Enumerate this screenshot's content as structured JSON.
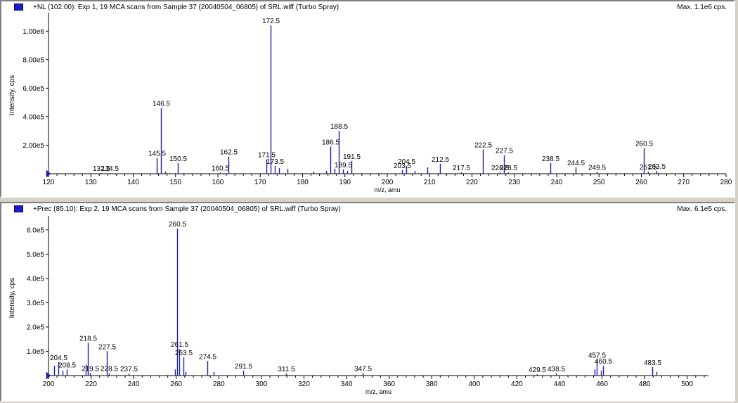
{
  "chart_data": [
    {
      "type": "bar",
      "title": "+NL (102.00): Exp 1, 19 MCA scans from Sample 37 (20040504_06805) of SRL.wiff (Turbo Spray)",
      "max_label": "Max. 1.1e6 cps.",
      "xlabel": "m/z, amu",
      "ylabel": "Intensity, cps",
      "xlim": [
        120,
        280
      ],
      "ylim": [
        0,
        1100000
      ],
      "xticks": [
        120,
        130,
        140,
        150,
        160,
        170,
        180,
        190,
        200,
        210,
        220,
        230,
        240,
        250,
        260,
        270,
        280
      ],
      "yticks": [
        {
          "value": 200000,
          "label": "2.00e5"
        },
        {
          "value": 400000,
          "label": "4.00e5"
        },
        {
          "value": 600000,
          "label": "6.00e5"
        },
        {
          "value": 800000,
          "label": "8.00e5"
        },
        {
          "value": 1000000,
          "label": "1.00e6"
        }
      ],
      "peaks": [
        {
          "x": 132.5,
          "y": 4000,
          "label": "132.5"
        },
        {
          "x": 134.5,
          "y": 4000,
          "label": "134.5"
        },
        {
          "x": 145.5,
          "y": 110000,
          "label": "145.5"
        },
        {
          "x": 146.5,
          "y": 460000,
          "label": "146.5"
        },
        {
          "x": 147.5,
          "y": 15000
        },
        {
          "x": 150.5,
          "y": 75000,
          "label": "150.5"
        },
        {
          "x": 160.5,
          "y": 8000,
          "label": "160.5"
        },
        {
          "x": 162.5,
          "y": 120000,
          "label": "162.5"
        },
        {
          "x": 171.5,
          "y": 100000,
          "label": "171.5"
        },
        {
          "x": 172.5,
          "y": 1040000,
          "label": "172.5"
        },
        {
          "x": 173.5,
          "y": 55000,
          "label": "173.5"
        },
        {
          "x": 174.5,
          "y": 40000
        },
        {
          "x": 176.5,
          "y": 35000
        },
        {
          "x": 182.5,
          "y": 15000
        },
        {
          "x": 185.5,
          "y": 20000
        },
        {
          "x": 186.5,
          "y": 190000,
          "label": "186.5"
        },
        {
          "x": 187.5,
          "y": 35000
        },
        {
          "x": 188.5,
          "y": 300000,
          "label": "188.5"
        },
        {
          "x": 189.5,
          "y": 30000,
          "label": "189.5"
        },
        {
          "x": 190.5,
          "y": 20000
        },
        {
          "x": 191.5,
          "y": 90000,
          "label": "191.5"
        },
        {
          "x": 203.5,
          "y": 25000,
          "label": "203.5"
        },
        {
          "x": 204.5,
          "y": 55000,
          "label": "204.5"
        },
        {
          "x": 206.5,
          "y": 20000
        },
        {
          "x": 209.5,
          "y": 45000
        },
        {
          "x": 212.5,
          "y": 70000,
          "label": "212.5"
        },
        {
          "x": 217.5,
          "y": 10000,
          "label": "217.5"
        },
        {
          "x": 222.5,
          "y": 170000,
          "label": "222.5"
        },
        {
          "x": 226.5,
          "y": 10000,
          "label": "226.5"
        },
        {
          "x": 227.5,
          "y": 130000,
          "label": "227.5"
        },
        {
          "x": 228.5,
          "y": 10000,
          "label": "228.5"
        },
        {
          "x": 238.5,
          "y": 75000,
          "label": "238.5"
        },
        {
          "x": 244.5,
          "y": 45000,
          "label": "244.5"
        },
        {
          "x": 249.5,
          "y": 12000,
          "label": "249.5"
        },
        {
          "x": 260.5,
          "y": 180000,
          "label": "260.5"
        },
        {
          "x": 261.5,
          "y": 15000,
          "label": "261.5"
        },
        {
          "x": 263.5,
          "y": 20000,
          "label": "263.5"
        }
      ]
    },
    {
      "type": "bar",
      "title": "+Prec (85.10): Exp 2, 19 MCA scans from Sample 37 (20040504_06805) of SRL.wiff (Turbo Spray)",
      "max_label": "Max. 6.1e5 cps.",
      "xlabel": "m/z, amu",
      "ylabel": "Intensity, cps",
      "xlim": [
        200,
        510
      ],
      "ylim": [
        0,
        640000
      ],
      "xticks": [
        200,
        220,
        240,
        260,
        280,
        300,
        320,
        340,
        360,
        380,
        400,
        420,
        440,
        460,
        480,
        500
      ],
      "yticks": [
        {
          "value": 100000,
          "label": "1.0e5"
        },
        {
          "value": 200000,
          "label": "2.0e5"
        },
        {
          "value": 300000,
          "label": "3.0e5"
        },
        {
          "value": 400000,
          "label": "4.0e5"
        },
        {
          "value": 500000,
          "label": "5.0e5"
        },
        {
          "value": 600000,
          "label": "6.0e5"
        }
      ],
      "peaks": [
        {
          "x": 202.5,
          "y": 40000
        },
        {
          "x": 204.5,
          "y": 55000,
          "label": "204.5"
        },
        {
          "x": 206.5,
          "y": 20000
        },
        {
          "x": 208.5,
          "y": 25000,
          "label": "208.5"
        },
        {
          "x": 217.5,
          "y": 45000
        },
        {
          "x": 218.5,
          "y": 135000,
          "label": "218.5"
        },
        {
          "x": 219.5,
          "y": 10000,
          "label": "219.5"
        },
        {
          "x": 227.5,
          "y": 100000,
          "label": "227.5"
        },
        {
          "x": 228.5,
          "y": 10000,
          "label": "228.5"
        },
        {
          "x": 237.5,
          "y": 8000,
          "label": "237.5"
        },
        {
          "x": 259.5,
          "y": 25000
        },
        {
          "x": 260.5,
          "y": 605000,
          "label": "260.5"
        },
        {
          "x": 261.5,
          "y": 110000,
          "label": "261.5"
        },
        {
          "x": 263.5,
          "y": 75000,
          "label": "263.5"
        },
        {
          "x": 264.5,
          "y": 15000
        },
        {
          "x": 274.5,
          "y": 60000,
          "label": "274.5"
        },
        {
          "x": 277.5,
          "y": 15000
        },
        {
          "x": 291.5,
          "y": 20000,
          "label": "291.5"
        },
        {
          "x": 311.5,
          "y": 8000,
          "label": "311.5"
        },
        {
          "x": 347.5,
          "y": 10000,
          "label": "347.5"
        },
        {
          "x": 429.5,
          "y": 6000,
          "label": "429.5"
        },
        {
          "x": 438.5,
          "y": 8000,
          "label": "438.5"
        },
        {
          "x": 456.5,
          "y": 25000
        },
        {
          "x": 457.5,
          "y": 65000,
          "label": "457.5"
        },
        {
          "x": 459.5,
          "y": 20000
        },
        {
          "x": 460.5,
          "y": 40000,
          "label": "460.5"
        },
        {
          "x": 483.5,
          "y": 35000,
          "label": "483.5"
        },
        {
          "x": 485.5,
          "y": 15000
        }
      ]
    }
  ]
}
